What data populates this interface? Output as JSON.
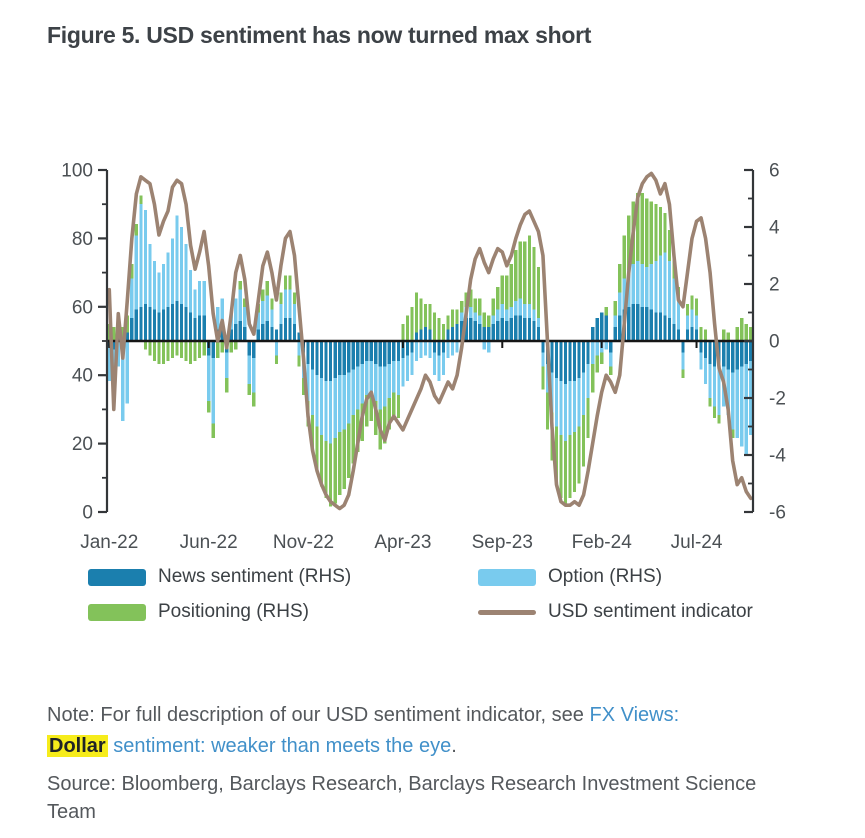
{
  "figure": {
    "title": "Figure 5. USD sentiment has now turned max short"
  },
  "colors": {
    "news": "#1b7fae",
    "option": "#79cbee",
    "positioning": "#83c25a",
    "line": "#9c8372",
    "zero_line": "#161616",
    "axis": "#333639",
    "tick_label": "#4b5054",
    "link": "#4190c9",
    "highlight": "#f6ec1b"
  },
  "legend": [
    {
      "label": "News sentiment (RHS)",
      "color": "#1b7fae",
      "type": "bar"
    },
    {
      "label": "Option (RHS)",
      "color": "#79cbee",
      "type": "bar"
    },
    {
      "label": "Positioning (RHS)",
      "color": "#83c25a",
      "type": "bar"
    },
    {
      "label": "USD sentiment indicator",
      "color": "#9c8372",
      "type": "line"
    }
  ],
  "note": {
    "prefix": "Note: For full description of our USD sentiment indicator, see ",
    "link1": "FX Views:",
    "highlight": "Dollar",
    "link2": " sentiment: weaker than meets the eye",
    "suffix": "."
  },
  "source": "Source: Bloomberg, Barclays Research, Barclays Research Investment Science Team",
  "chart_data": {
    "type": "combo",
    "description": "Weekly stacked bars (right axis, -6..6) of USD sentiment components plus USD sentiment indicator line (left axis, 0..100), Jan-2022 to Sep-2024",
    "weeks": 143,
    "left_axis": {
      "range": [
        0,
        100
      ],
      "major_step": 20,
      "minor_step": 10
    },
    "right_axis": {
      "range": [
        -6,
        6
      ],
      "major_step": 2,
      "minor_step": 1
    },
    "grid": false,
    "legend_position": "bottom",
    "x_labels": [
      {
        "label": "Jan-22",
        "week": 0
      },
      {
        "label": "Jun-22",
        "week": 22
      },
      {
        "label": "Nov-22",
        "week": 43
      },
      {
        "label": "Apr-23",
        "week": 65
      },
      {
        "label": "Sep-23",
        "week": 87
      },
      {
        "label": "Feb-24",
        "week": 109
      },
      {
        "label": "Jul-24",
        "week": 130
      }
    ],
    "series": [
      {
        "name": "News sentiment (RHS)",
        "type": "bar",
        "axis": "right",
        "color": "#1b7fae",
        "values": [
          -0.2,
          -0.3,
          0.2,
          -0.4,
          0.3,
          0.8,
          1.1,
          1.2,
          1.3,
          1.2,
          1.1,
          1.0,
          1.1,
          1.2,
          1.3,
          1.4,
          1.3,
          1.2,
          1.0,
          0.8,
          0.9,
          0.9,
          -0.5,
          -0.6,
          0.4,
          0.5,
          -0.4,
          0.4,
          0.6,
          0.7,
          0.5,
          -0.5,
          -0.6,
          0.4,
          0.6,
          0.7,
          0.5,
          0.4,
          0.6,
          0.8,
          0.8,
          0.6,
          0.3,
          -0.4,
          -0.8,
          -1.0,
          -1.2,
          -1.3,
          -1.4,
          -1.4,
          -1.3,
          -1.2,
          -1.2,
          -1.1,
          -1.0,
          -0.9,
          -0.8,
          -0.7,
          -0.7,
          -0.8,
          -0.9,
          -0.9,
          -0.8,
          -0.7,
          -0.7,
          -0.6,
          -0.5,
          -0.4,
          0.3,
          0.4,
          0.5,
          0.4,
          -0.4,
          -0.5,
          -0.4,
          0.4,
          0.5,
          0.6,
          0.7,
          0.8,
          0.8,
          0.7,
          0.6,
          0.5,
          0.5,
          0.6,
          0.7,
          0.8,
          0.7,
          0.8,
          0.9,
          0.9,
          0.8,
          0.8,
          0.7,
          0.5,
          -0.4,
          -0.8,
          -1.1,
          -1.3,
          -1.4,
          -1.5,
          -1.4,
          -1.4,
          -1.3,
          -1.1,
          -0.8,
          0.5,
          0.8,
          1.0,
          0.9,
          -0.4,
          0.5,
          0.9,
          1.1,
          1.2,
          1.3,
          1.3,
          1.2,
          1.2,
          1.1,
          1.0,
          1.0,
          0.9,
          0.8,
          0.6,
          0.4,
          -0.4,
          0.4,
          0.5,
          0.4,
          -0.4,
          -0.6,
          -0.8,
          -0.9,
          -1.0,
          -0.9,
          -1.0,
          -1.1,
          -1.0,
          -0.9,
          -0.8,
          -0.7
        ]
      },
      {
        "name": "Option (RHS)",
        "type": "bar",
        "axis": "right",
        "color": "#79cbee",
        "values": [
          -1.2,
          -1.9,
          -0.9,
          -2.4,
          -2.2,
          1.4,
          2.6,
          3.6,
          3.3,
          2.2,
          1.7,
          1.4,
          1.6,
          1.9,
          2.3,
          3.0,
          2.7,
          2.2,
          1.5,
          1.0,
          1.2,
          1.2,
          -1.6,
          -2.3,
          0.8,
          1.0,
          -0.9,
          0.6,
          0.9,
          1.1,
          0.7,
          -1.0,
          -1.2,
          0.6,
          0.8,
          0.9,
          0.6,
          -0.5,
          0.7,
          1.0,
          1.0,
          0.7,
          -0.5,
          -0.9,
          -1.3,
          -1.6,
          -1.8,
          -2.0,
          -2.1,
          -2.2,
          -2.1,
          -2.0,
          -1.9,
          -1.8,
          -1.6,
          -1.5,
          -1.4,
          -1.2,
          -1.1,
          -1.3,
          -1.5,
          -1.4,
          -1.2,
          -1.1,
          -1.2,
          -1.0,
          -0.9,
          -0.8,
          -0.7,
          -0.6,
          -0.5,
          -0.6,
          -0.8,
          -0.9,
          -0.8,
          -0.6,
          -0.5,
          -0.4,
          0.3,
          0.4,
          0.4,
          0.3,
          0.3,
          -0.3,
          -0.4,
          0.3,
          0.4,
          0.5,
          0.4,
          0.4,
          0.5,
          0.6,
          0.5,
          0.5,
          0.4,
          0.3,
          -0.5,
          -1.0,
          -1.4,
          -1.7,
          -1.9,
          -2.0,
          -1.9,
          -1.8,
          -1.7,
          -1.5,
          -1.2,
          -0.8,
          -0.5,
          -0.4,
          -0.3,
          -0.5,
          0.4,
          0.8,
          1.1,
          1.3,
          1.4,
          1.5,
          1.5,
          1.4,
          1.6,
          1.8,
          2.0,
          2.2,
          2.0,
          1.6,
          1.0,
          -0.6,
          0.5,
          0.6,
          0.5,
          -0.6,
          -0.9,
          -1.2,
          -1.4,
          -1.6,
          -1.4,
          -1.6,
          -2.0,
          -2.4,
          -2.8,
          -3.2,
          -2.6
        ]
      },
      {
        "name": "Positioning (RHS)",
        "type": "bar",
        "axis": "right",
        "color": "#83c25a",
        "values": [
          0.6,
          0.5,
          0.7,
          0.5,
          0.6,
          0.5,
          0.4,
          0.3,
          -0.3,
          -0.5,
          -0.7,
          -0.8,
          -0.8,
          -0.7,
          -0.6,
          -0.5,
          -0.6,
          -0.7,
          -0.8,
          -0.7,
          -0.6,
          -0.5,
          -0.4,
          -0.5,
          -0.6,
          -0.4,
          -0.5,
          -0.4,
          -0.3,
          0.3,
          0.3,
          -0.4,
          -0.5,
          0.3,
          0.4,
          0.5,
          0.4,
          -0.3,
          0.4,
          0.5,
          0.5,
          0.4,
          -0.4,
          -0.6,
          -0.9,
          -1.2,
          -1.5,
          -1.8,
          -2.0,
          -2.2,
          -2.3,
          -2.2,
          -2.1,
          -1.9,
          -1.7,
          -1.5,
          -1.3,
          -1.1,
          -1.0,
          -1.2,
          -1.4,
          -1.3,
          -1.1,
          -0.9,
          -0.8,
          0.6,
          0.9,
          1.2,
          1.4,
          1.1,
          0.8,
          0.9,
          1.0,
          0.8,
          0.6,
          0.5,
          0.6,
          0.5,
          0.4,
          0.5,
          0.6,
          0.5,
          0.6,
          0.5,
          0.4,
          0.6,
          0.8,
          1.0,
          1.2,
          1.5,
          1.8,
          2.0,
          2.2,
          2.4,
          2.2,
          1.8,
          -0.8,
          -1.3,
          -1.7,
          -2.0,
          -2.2,
          -2.3,
          -2.2,
          -2.1,
          -2.0,
          -1.8,
          -1.4,
          -1.0,
          -0.6,
          -0.4,
          0.3,
          -0.3,
          0.5,
          1.0,
          1.5,
          1.9,
          2.2,
          2.4,
          2.5,
          2.4,
          2.2,
          2.0,
          1.7,
          1.4,
          1.1,
          0.8,
          0.5,
          -0.3,
          0.4,
          0.5,
          0.6,
          0.5,
          0.4,
          -0.3,
          -0.4,
          -0.3,
          0.4,
          0.3,
          -0.3,
          0.5,
          0.8,
          0.6,
          0.5
        ]
      }
    ],
    "line": {
      "name": "USD sentiment indicator",
      "type": "line",
      "axis": "left",
      "color": "#9c8372",
      "values": [
        65,
        30,
        58,
        45,
        62,
        80,
        93,
        98,
        97,
        96,
        90,
        81,
        85,
        88,
        95,
        97,
        96,
        90,
        78,
        71,
        76,
        82,
        72,
        58,
        50,
        56,
        48,
        58,
        70,
        75,
        68,
        55,
        52,
        62,
        72,
        76,
        70,
        62,
        72,
        80,
        82,
        75,
        60,
        45,
        28,
        18,
        12,
        8,
        5,
        3,
        2,
        1,
        2,
        5,
        12,
        20,
        28,
        33,
        35,
        30,
        24,
        21,
        26,
        28,
        26,
        24,
        27,
        30,
        33,
        36,
        40,
        38,
        34,
        32,
        35,
        38,
        36,
        40,
        48,
        58,
        68,
        74,
        77,
        73,
        70,
        74,
        77,
        76,
        72,
        75,
        80,
        84,
        87,
        88,
        85,
        82,
        75,
        50,
        25,
        8,
        3,
        2,
        2,
        3,
        2,
        5,
        12,
        20,
        28,
        35,
        40,
        38,
        35,
        40,
        55,
        70,
        82,
        92,
        96,
        98,
        99,
        97,
        93,
        96,
        90,
        75,
        62,
        60,
        70,
        80,
        85,
        86,
        80,
        70,
        55,
        42,
        38,
        30,
        15,
        8,
        10,
        6,
        4
      ]
    }
  }
}
